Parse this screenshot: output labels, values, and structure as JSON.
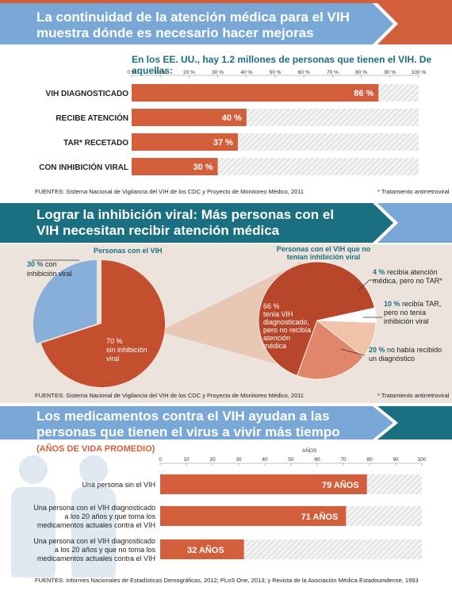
{
  "banner1": {
    "line1": "La continuidad de la atención médica para el VIH",
    "line2": "muestra dónde es necesario hacer mejoras"
  },
  "section1": {
    "subtitle": "En los EE. UU., hay 1.2 millones de personas que tienen el VIH. De aquellas:",
    "source": "FUENTES: Sistema Nacional de Vigilancia del VIH de los CDC y Proyecto de Monitoreo Médico, 2011",
    "footnote": "* Tratamiento antirretroviral"
  },
  "banner2": {
    "line1": "Lograr la inhibición viral: Más personas con el",
    "line2": "VIH necesitan recibir atención médica"
  },
  "section2": {
    "left_title": "Personas con el VIH",
    "right_title_1": "Personas con el VIH que no",
    "right_title_2": "tenían inhibición viral",
    "lbl30_pct": "30 %",
    "lbl30_a": "con",
    "lbl30_b": "inhibición viral",
    "lbl70_a": "70 %",
    "lbl70_b": "sin inhibición",
    "lbl70_c": "viral",
    "lbl66_a": "66 %",
    "lbl66_b": "tenía VIH",
    "lbl66_c": "diagnosticado,",
    "lbl66_d": "pero no recibía",
    "lbl66_e": "atención",
    "lbl66_f": "médica",
    "lbl4_pct": "4 %",
    "lbl4_a": "recibía atención",
    "lbl4_b": "médica, pero no TAR*",
    "lbl10_pct": "10 %",
    "lbl10_a": "recibía TAR,",
    "lbl10_b": "pero no tenía",
    "lbl10_c": "inhibición viral",
    "lbl20_pct": "20 %",
    "lbl20_a": "no había recibido",
    "lbl20_b": "un diagnóstico",
    "source": "FUENTES: Sistema Nacional de Vigilancia del VIH de los CDC y Proyecto de Monitoreo Médico, 2011",
    "footnote": "* Tratamiento antirretroviral"
  },
  "banner3": {
    "line1": "Los medicamentos contra el VIH ayudan a las",
    "line2": "personas que tienen el virus a vivir más tiempo"
  },
  "section3": {
    "subtitle": "(AÑOS DE VIDA PROMEDIO)",
    "source": "FUENTES: Informes Nacionales de Estadísticas Demográficas, 2012; PLoS One, 2013; y Revista de la Asociación Médica Estadounidense, 1993"
  },
  "chart_data": [
    {
      "type": "bar",
      "categories": [
        "VIH DIAGNOSTICADO",
        "RECIBE ATENCIÓN",
        "TAR* RECETADO",
        "CON INHIBICIÓN VIRAL"
      ],
      "values": [
        86,
        40,
        37,
        30
      ],
      "value_labels": [
        "86 %",
        "40 %",
        "37 %",
        "30 %"
      ],
      "ticks": [
        "0 %",
        "10 %",
        "20 %",
        "30 %",
        "40 %",
        "50 %",
        "60 %",
        "70 %",
        "80 %",
        "90 %",
        "100 %"
      ],
      "xlim": [
        0,
        100
      ]
    },
    {
      "type": "pie",
      "title": "Personas con el VIH",
      "labels": [
        "con inhibición viral",
        "sin inhibición viral"
      ],
      "values": [
        30,
        70
      ]
    },
    {
      "type": "pie",
      "title": "Personas con el VIH que no tenían inhibición viral",
      "labels": [
        "tenía VIH diagnosticado, pero no recibía atención médica",
        "recibía atención médica, pero no TAR*",
        "recibía TAR, pero no tenía inhibición viral",
        "no había recibido un diagnóstico"
      ],
      "values": [
        66,
        4,
        10,
        20
      ]
    },
    {
      "type": "bar",
      "axis_title": "AÑOS",
      "categories": [
        "Una persona sin el VIH",
        "Una persona con el VIH diagnosticado a los 20 años y que toma los medicamentos actuales contra el VIH",
        "Una persona con el VIH diagnosticado a los 20 años y que no toma los medicamentos actuales contra el VIH"
      ],
      "category_lines": [
        [
          "Una persona sin el VIH"
        ],
        [
          "Una persona con el VIH diagnosticado",
          "a los 20 años y que toma los",
          "medicamentos actuales contra el VIH"
        ],
        [
          "Una persona con el VIH diagnosticado",
          "a los 20 años y que no toma los",
          "medicamentos actuales contra el VIH"
        ]
      ],
      "values": [
        79,
        71,
        32
      ],
      "value_labels": [
        "79 AÑOS",
        "71 AÑOS",
        "32 AÑOS"
      ],
      "ticks": [
        "0",
        "10",
        "20",
        "30",
        "40",
        "50",
        "60",
        "70",
        "80",
        "90",
        "100"
      ],
      "xlim": [
        0,
        100
      ]
    }
  ],
  "colors": {
    "bar": "#d35e3c",
    "banner_blue": "#6e9fd0",
    "banner_teal": "#1a6f80",
    "accent": "#d35e3c",
    "pie_light": "#87afd9",
    "pie_dark": "#c44f2e",
    "band": "#ece4dc"
  }
}
